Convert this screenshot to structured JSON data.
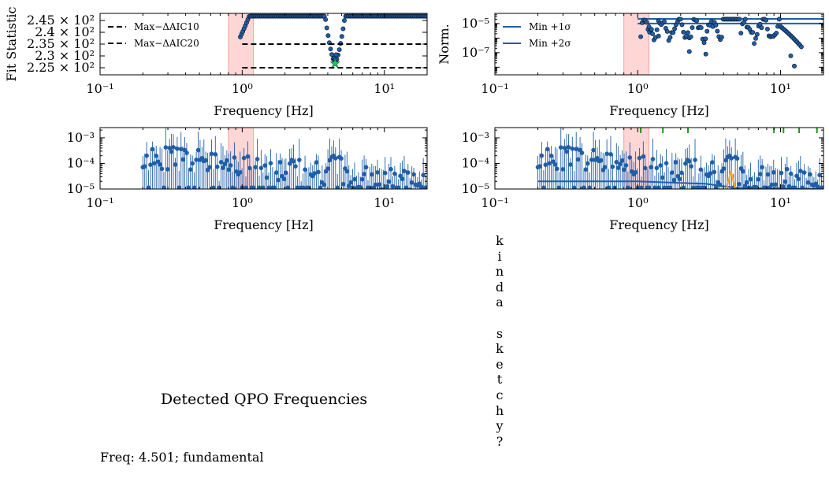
{
  "chart_data": [
    {
      "type": "scatter",
      "ylabel": "Fit Statistic",
      "xlabel": "Frequency [Hz]",
      "xscale": "log",
      "xlim": [
        0.1,
        20
      ],
      "ylim": [
        222,
        248
      ],
      "y_tick_labels": [
        "2.25 × 10²",
        "2.3 × 10²",
        "2.35 × 10²",
        "2.4 × 10²",
        "2.45 × 10²"
      ],
      "y_ticks": [
        225,
        230,
        235,
        240,
        245
      ],
      "x_tick_labels": [
        "10⁻¹",
        "10⁰",
        "10¹"
      ],
      "x_ticks": [
        0.1,
        1,
        10
      ],
      "shaded_band": [
        0.8,
        1.2
      ],
      "hlines": [
        {
          "name": "Max−ΔAIC10",
          "y": 235,
          "xmin": 1.0,
          "xmax": 20
        },
        {
          "name": "Max−ΔAIC20",
          "y": 225,
          "xmin": 1.0,
          "xmax": 20
        }
      ],
      "legend": "upper-left",
      "series": {
        "plateau_y": 246.8,
        "dips": [
          {
            "x": 1.0,
            "min": 238
          },
          {
            "x": 4.5,
            "min": 227
          }
        ]
      },
      "star": {
        "x": 4.5,
        "y": 226.8,
        "color": "#22c55e"
      }
    },
    {
      "type": "scatter",
      "ylabel": "Norm.",
      "xlabel": "Frequency [Hz]",
      "xscale": "log",
      "yscale": "log",
      "xlim": [
        0.1,
        20
      ],
      "ylim": [
        3e-09,
        5e-05
      ],
      "y_tick_labels": [
        "10⁻⁵",
        "10⁻⁷"
      ],
      "y_ticks": [
        1e-05,
        1e-07
      ],
      "x_tick_labels": [
        "10⁻¹",
        "10⁰",
        "10¹"
      ],
      "x_ticks": [
        0.1,
        1,
        10
      ],
      "shaded_band": [
        0.8,
        1.2
      ],
      "hlines": [
        {
          "name": "Min +1σ",
          "y": 2.1e-05,
          "xmin": 1.0,
          "xmax": 20
        },
        {
          "name": "Min +2σ",
          "y": 1e-05,
          "xmin": 1.0,
          "xmax": 20
        }
      ],
      "legend": "upper-left"
    },
    {
      "type": "scatter",
      "xlabel": "Frequency [Hz]",
      "xscale": "log",
      "yscale": "log",
      "xlim": [
        0.1,
        20
      ],
      "ylim": [
        1e-05,
        0.0025
      ],
      "y_tick_labels": [
        "10⁻³",
        "10⁻⁴",
        "10⁻⁵"
      ],
      "y_ticks": [
        0.001,
        0.0001,
        1e-05
      ],
      "x_tick_labels": [
        "10⁻¹",
        "10⁰",
        "10¹"
      ],
      "x_ticks": [
        0.1,
        1,
        10
      ],
      "shaded_band": [
        0.8,
        1.2
      ],
      "error_bars": true
    },
    {
      "type": "scatter",
      "xlabel": "Frequency [Hz]",
      "xscale": "log",
      "yscale": "log",
      "xlim": [
        0.1,
        20
      ],
      "ylim": [
        1e-05,
        0.0025
      ],
      "y_tick_labels": [
        "10⁻³",
        "10⁻⁴",
        "10⁻⁵"
      ],
      "y_ticks": [
        0.001,
        0.0001,
        1e-05
      ],
      "x_tick_labels": [
        "10⁻¹",
        "10⁰",
        "10¹"
      ],
      "x_ticks": [
        0.1,
        1,
        10
      ],
      "shaded_band": [
        0.8,
        1.2
      ],
      "error_bars": true,
      "model_line": {
        "x": [
          0.2,
          1.0,
          3.0,
          5.0,
          20
        ],
        "y": [
          2e-05,
          2e-05,
          1.6e-05,
          1.1e-05,
          1e-05
        ]
      },
      "green_ticks_x": [
        1.05,
        1.5,
        2.25,
        9.0,
        10.5,
        13.5,
        18.0
      ]
    }
  ],
  "text_panel": {
    "vertical_letters": [
      "k",
      "i",
      "n",
      "d",
      "a",
      "",
      "s",
      "k",
      "e",
      "t",
      "c",
      "h",
      "y",
      "?"
    ],
    "qpo_title": "Detected QPO Frequencies",
    "qpo_line": "Freq: 4.501; fundamental"
  },
  "colors": {
    "points": "#1f5fa8",
    "point_edge": "#0d1b2e",
    "band_fill": "#ffd6d6",
    "band_edge": "#f2a0a0",
    "star": "#22c55e",
    "orange": "#f5a623",
    "green_ticks": "#1a9a1a"
  }
}
